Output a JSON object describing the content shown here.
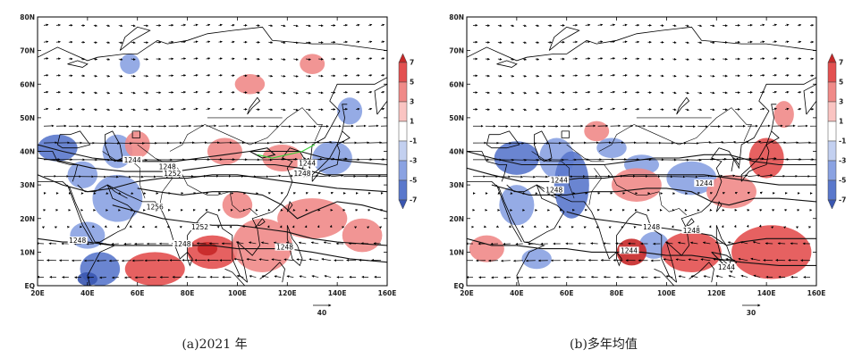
{
  "panels": [
    {
      "caption": "(a)2021 年",
      "contour_labels": [
        {
          "text": "1244",
          "lon": 58,
          "lat": 37
        },
        {
          "text": "1248",
          "lon": 72,
          "lat": 35
        },
        {
          "text": "1252",
          "lon": 74,
          "lat": 33
        },
        {
          "text": "1244",
          "lon": 128,
          "lat": 36
        },
        {
          "text": "1248",
          "lon": 126,
          "lat": 33
        },
        {
          "text": "1256",
          "lon": 67,
          "lat": 23
        },
        {
          "text": "1252",
          "lon": 85,
          "lat": 17
        },
        {
          "text": "1248",
          "lon": 78,
          "lat": 12
        },
        {
          "text": "1248",
          "lon": 36,
          "lat": 13
        },
        {
          "text": "1248",
          "lon": 119,
          "lat": 11
        }
      ],
      "ref_vector_label": "40",
      "anomaly_blobs": [
        {
          "lon": 28,
          "lat": 41,
          "rx": 8,
          "ry": 4,
          "v": -4
        },
        {
          "lon": 52,
          "lat": 40,
          "rx": 6,
          "ry": 5,
          "v": -3
        },
        {
          "lon": 38,
          "lat": 33,
          "rx": 6,
          "ry": 4,
          "v": -3
        },
        {
          "lon": 52,
          "lat": 26,
          "rx": 10,
          "ry": 7,
          "v": -3
        },
        {
          "lon": 40,
          "lat": 15,
          "rx": 7,
          "ry": 4,
          "v": -3
        },
        {
          "lon": 45,
          "lat": 5,
          "rx": 8,
          "ry": 5,
          "v": -4
        },
        {
          "lon": 40,
          "lat": 2,
          "rx": 4,
          "ry": 2,
          "v": -6
        },
        {
          "lon": 57,
          "lat": 66,
          "rx": 4,
          "ry": 3,
          "v": -3
        },
        {
          "lon": 145,
          "lat": 52,
          "rx": 5,
          "ry": 4,
          "v": -3
        },
        {
          "lon": 138,
          "lat": 38,
          "rx": 8,
          "ry": 5,
          "v": -3
        },
        {
          "lon": 67,
          "lat": 5,
          "rx": 12,
          "ry": 5,
          "v": 4
        },
        {
          "lon": 90,
          "lat": 10,
          "rx": 10,
          "ry": 5,
          "v": 5
        },
        {
          "lon": 88,
          "lat": 11,
          "rx": 4,
          "ry": 2,
          "v": 7
        },
        {
          "lon": 110,
          "lat": 12,
          "rx": 12,
          "ry": 8,
          "v": 3
        },
        {
          "lon": 130,
          "lat": 20,
          "rx": 14,
          "ry": 6,
          "v": 3
        },
        {
          "lon": 118,
          "lat": 38,
          "rx": 8,
          "ry": 4,
          "v": 3
        },
        {
          "lon": 95,
          "lat": 40,
          "rx": 7,
          "ry": 4,
          "v": 2
        },
        {
          "lon": 60,
          "lat": 42,
          "rx": 5,
          "ry": 4,
          "v": 3
        },
        {
          "lon": 105,
          "lat": 60,
          "rx": 6,
          "ry": 3,
          "v": 3
        },
        {
          "lon": 130,
          "lat": 66,
          "rx": 5,
          "ry": 3,
          "v": 2
        },
        {
          "lon": 150,
          "lat": 15,
          "rx": 8,
          "ry": 5,
          "v": 3
        },
        {
          "lon": 100,
          "lat": 24,
          "rx": 6,
          "ry": 4,
          "v": 2
        }
      ]
    },
    {
      "caption": "(b)多年均值",
      "contour_labels": [
        {
          "text": "1244",
          "lon": 57,
          "lat": 31
        },
        {
          "text": "1248",
          "lon": 55,
          "lat": 28
        },
        {
          "text": "1244",
          "lon": 115,
          "lat": 30
        },
        {
          "text": "1248",
          "lon": 94,
          "lat": 17
        },
        {
          "text": "1248",
          "lon": 110,
          "lat": 16
        },
        {
          "text": "1244",
          "lon": 85,
          "lat": 10
        },
        {
          "text": "1244",
          "lon": 124,
          "lat": 5
        }
      ],
      "ref_vector_label": "30",
      "anomaly_blobs": [
        {
          "lon": 40,
          "lat": 38,
          "rx": 9,
          "ry": 5,
          "v": -4
        },
        {
          "lon": 56,
          "lat": 38,
          "rx": 7,
          "ry": 6,
          "v": -3
        },
        {
          "lon": 62,
          "lat": 30,
          "rx": 7,
          "ry": 10,
          "v": -4
        },
        {
          "lon": 40,
          "lat": 24,
          "rx": 7,
          "ry": 6,
          "v": -3
        },
        {
          "lon": 78,
          "lat": 41,
          "rx": 6,
          "ry": 3,
          "v": -3
        },
        {
          "lon": 48,
          "lat": 8,
          "rx": 6,
          "ry": 3,
          "v": -3
        },
        {
          "lon": 95,
          "lat": 12,
          "rx": 6,
          "ry": 4,
          "v": -3
        },
        {
          "lon": 110,
          "lat": 32,
          "rx": 10,
          "ry": 5,
          "v": -2
        },
        {
          "lon": 90,
          "lat": 36,
          "rx": 7,
          "ry": 3,
          "v": -2
        },
        {
          "lon": 86,
          "lat": 10,
          "rx": 6,
          "ry": 4,
          "v": 6
        },
        {
          "lon": 110,
          "lat": 10,
          "rx": 12,
          "ry": 6,
          "v": 4
        },
        {
          "lon": 142,
          "lat": 10,
          "rx": 16,
          "ry": 8,
          "v": 4
        },
        {
          "lon": 28,
          "lat": 11,
          "rx": 7,
          "ry": 4,
          "v": 3
        },
        {
          "lon": 88,
          "lat": 30,
          "rx": 10,
          "ry": 5,
          "v": 3
        },
        {
          "lon": 126,
          "lat": 28,
          "rx": 10,
          "ry": 5,
          "v": 3
        },
        {
          "lon": 140,
          "lat": 38,
          "rx": 7,
          "ry": 6,
          "v": 4
        },
        {
          "lon": 147,
          "lat": 51,
          "rx": 4,
          "ry": 4,
          "v": 3
        },
        {
          "lon": 72,
          "lat": 46,
          "rx": 5,
          "ry": 3,
          "v": 2
        }
      ]
    }
  ],
  "axes": {
    "lon_ticks": [
      "20E",
      "40E",
      "60E",
      "80E",
      "100E",
      "120E",
      "140E",
      "160E"
    ],
    "lat_ticks": [
      "EQ",
      "10N",
      "20N",
      "30N",
      "40N",
      "50N",
      "60N",
      "70N",
      "80N"
    ],
    "lon_range": [
      20,
      160
    ],
    "lat_range": [
      0,
      80
    ]
  },
  "colorbar": {
    "labels": [
      "7",
      "5",
      "3",
      "1",
      "-1",
      "-3",
      "-5",
      "-7"
    ],
    "colors": [
      "#c62828",
      "#e35050",
      "#f08a88",
      "#fac4c2",
      "#ffffff",
      "#c3d0f0",
      "#8aa2e2",
      "#5a78cc",
      "#3a56b0"
    ]
  }
}
